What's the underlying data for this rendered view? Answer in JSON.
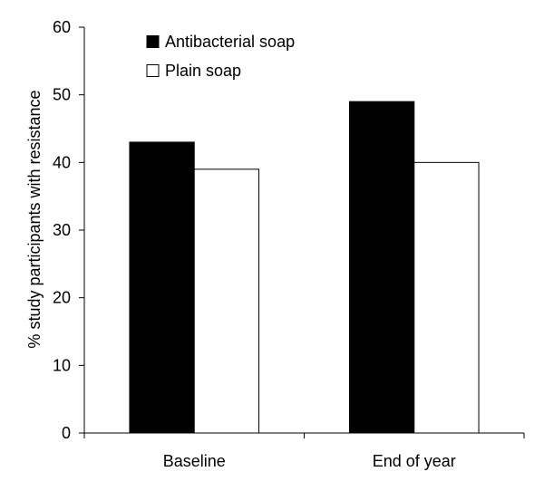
{
  "chart_data": {
    "type": "bar",
    "categories": [
      "Baseline",
      "End of year"
    ],
    "series": [
      {
        "name": "Antibacterial soap",
        "values": [
          43,
          49
        ],
        "color": "#000000"
      },
      {
        "name": "Plain soap",
        "values": [
          39,
          40
        ],
        "color": "#ffffff"
      }
    ],
    "ylabel": "% study participants with resistance",
    "ylim": [
      0,
      60
    ],
    "yticks": [
      0,
      10,
      20,
      30,
      40,
      50,
      60
    ],
    "grid": false,
    "legend_position": "top-left"
  }
}
